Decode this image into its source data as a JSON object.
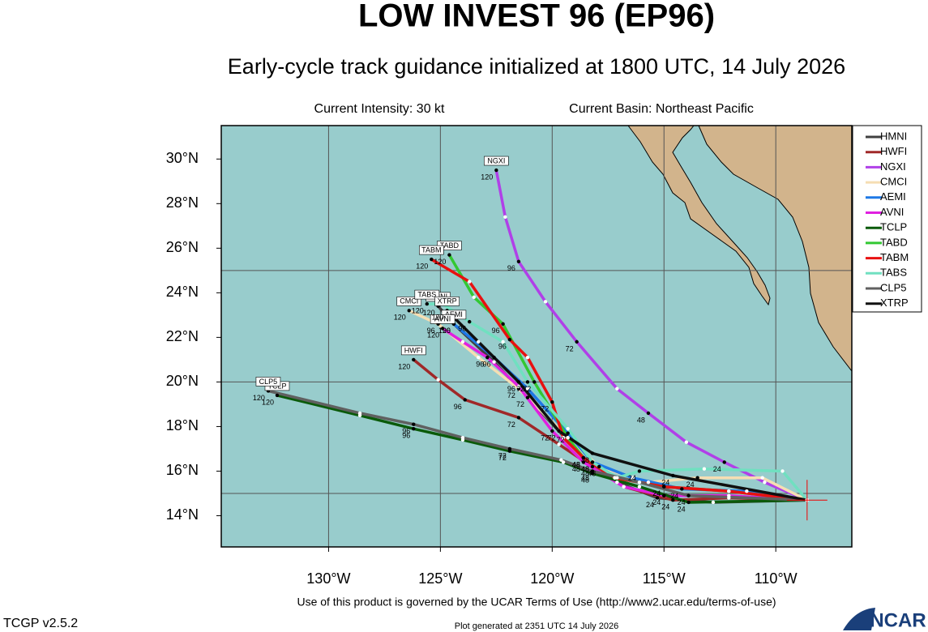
{
  "chart_data": {
    "type": "track-map",
    "title": "LOW INVEST 96 (EP96)",
    "subtitle": "Early-cycle track guidance initialized at 1800 UTC, 14 July 2026",
    "intensity": "Current Intensity: 30 kt",
    "basin": "Current Basin: Northeast Pacific",
    "terms": "Use of this product is governed by the UCAR Terms of Use (http://www2.ucar.edu/terms-of-use)",
    "version": "TCGP v2.5.2",
    "generated": "Plot generated at 2351 UTC   14 July 2026",
    "logo": "NCAR",
    "xlim": [
      -134.8,
      -106.6
    ],
    "ylim": [
      12.6,
      31.5
    ],
    "xticks": [
      {
        "value": -130,
        "label": "130°W"
      },
      {
        "value": -125,
        "label": "125°W"
      },
      {
        "value": -120,
        "label": "120°W"
      },
      {
        "value": -115,
        "label": "115°W"
      },
      {
        "value": -110,
        "label": "110°W"
      }
    ],
    "yticks": [
      {
        "value": 30,
        "label": "30°N"
      },
      {
        "value": 28,
        "label": "28°N"
      },
      {
        "value": 26,
        "label": "26°N"
      },
      {
        "value": 24,
        "label": "24°N"
      },
      {
        "value": 22,
        "label": "22°N"
      },
      {
        "value": 20,
        "label": "20°N"
      },
      {
        "value": 18,
        "label": "18°N"
      },
      {
        "value": 16,
        "label": "16°N"
      },
      {
        "value": 14,
        "label": "14°N"
      }
    ],
    "lat_grid": [
      15,
      20,
      25
    ],
    "current_position": {
      "lon": -108.6,
      "lat": 14.7
    },
    "tracks": [
      {
        "name": "HMNI",
        "color": "#404040",
        "lon": [
          -108.6,
          -112.8,
          -115.3,
          -117.1,
          -118.6,
          -119.7,
          -121.1,
          -122.6,
          -124.4,
          -125.1
        ],
        "lat": [
          14.7,
          14.6,
          14.8,
          15.5,
          16.6,
          17.8,
          19.3,
          20.9,
          22.6,
          23.4
        ],
        "hours": [
          0,
          12,
          24,
          36,
          48,
          60,
          72,
          84,
          96,
          120
        ]
      },
      {
        "name": "HWFI",
        "color": "#a02828",
        "lon": [
          -108.6,
          -112.1,
          -114.6,
          -116.8,
          -118.2,
          -119.7,
          -121.5,
          -123.9,
          -125.1,
          -126.2
        ],
        "lat": [
          14.7,
          14.8,
          14.7,
          15.3,
          16.2,
          17.2,
          18.4,
          19.2,
          20.1,
          21.0
        ],
        "hours": [
          0,
          12,
          24,
          36,
          48,
          60,
          72,
          96,
          108,
          120
        ]
      },
      {
        "name": "NGXI",
        "color": "#b040e8",
        "lon": [
          -108.6,
          -110.5,
          -112.3,
          -114.0,
          -115.7,
          -117.1,
          -118.9,
          -120.3,
          -121.5,
          -122.1,
          -122.5
        ],
        "lat": [
          14.7,
          15.5,
          16.4,
          17.3,
          18.6,
          19.7,
          21.8,
          23.6,
          25.4,
          27.4,
          29.5
        ],
        "hours": [
          0,
          12,
          24,
          36,
          48,
          60,
          72,
          84,
          96,
          108,
          120
        ]
      },
      {
        "name": "CMCI",
        "color": "#f5deb3",
        "lon": [
          -108.6,
          -110.6,
          -113.5,
          -115.7,
          -117.9,
          -119.3,
          -121.5,
          -123.3,
          -125.1,
          -126.4
        ],
        "lat": [
          14.7,
          15.7,
          15.7,
          15.5,
          16.2,
          17.5,
          19.7,
          21.1,
          22.6,
          23.2
        ],
        "hours": [
          0,
          12,
          24,
          36,
          48,
          60,
          72,
          84,
          96,
          120
        ]
      },
      {
        "name": "AEMI",
        "color": "#1e78e6",
        "lon": [
          -108.6,
          -111.3,
          -114.2,
          -116.4,
          -118.2,
          -119.3,
          -121.1,
          -122.6,
          -124.4
        ],
        "lat": [
          14.7,
          15.1,
          15.2,
          15.7,
          16.4,
          17.7,
          19.7,
          21.1,
          22.6
        ],
        "hours": [
          0,
          12,
          24,
          36,
          48,
          72,
          84,
          96,
          120
        ]
      },
      {
        "name": "AVNI",
        "color": "#e020e0",
        "lon": [
          -108.6,
          -112.1,
          -115.0,
          -116.8,
          -118.6,
          -120.0,
          -121.5,
          -122.9,
          -124.0,
          -124.9
        ],
        "lat": [
          14.7,
          14.9,
          14.9,
          15.3,
          16.4,
          17.8,
          19.8,
          21.1,
          21.8,
          22.4
        ],
        "hours": [
          0,
          12,
          24,
          36,
          48,
          72,
          84,
          96,
          108,
          120
        ]
      },
      {
        "name": "TCLP",
        "color": "#0a5a0a",
        "lon": [
          -108.6,
          -113.9,
          -116.1,
          -118.2,
          -119.5,
          -121.9,
          -124.0,
          -126.2,
          -128.6,
          -132.3
        ],
        "lat": [
          14.7,
          14.6,
          15.3,
          15.9,
          16.4,
          16.9,
          17.4,
          17.9,
          18.5,
          19.4
        ],
        "hours": [
          0,
          24,
          36,
          48,
          60,
          72,
          84,
          96,
          108,
          120
        ]
      },
      {
        "name": "TABD",
        "color": "#32c832",
        "lon": [
          -108.6,
          -112.1,
          -115.0,
          -117.2,
          -118.6,
          -119.3,
          -120.8,
          -122.2,
          -123.5,
          -124.6
        ],
        "lat": [
          14.7,
          15.1,
          15.3,
          15.7,
          16.6,
          17.5,
          20.0,
          22.6,
          23.8,
          25.7
        ],
        "hours": [
          0,
          12,
          24,
          36,
          48,
          60,
          72,
          96,
          108,
          120
        ]
      },
      {
        "name": "TABM",
        "color": "#e81010",
        "lon": [
          -108.6,
          -112.1,
          -115.0,
          -117.2,
          -118.6,
          -119.5,
          -120.0,
          -121.1,
          -121.9,
          -123.7,
          -125.4
        ],
        "lat": [
          14.7,
          15.1,
          15.3,
          15.7,
          16.6,
          17.5,
          19.1,
          21.1,
          21.9,
          24.5,
          25.5
        ],
        "hours": [
          0,
          12,
          24,
          36,
          48,
          60,
          72,
          84,
          96,
          108,
          120
        ]
      },
      {
        "name": "TABS",
        "color": "#70e0c0",
        "lon": [
          -108.6,
          -109.7,
          -113.2,
          -116.1,
          -117.1,
          -118.2,
          -119.3,
          -121.1,
          -122.2,
          -123.7,
          -124.9,
          -125.6
        ],
        "lat": [
          14.7,
          16.0,
          16.1,
          16.0,
          15.7,
          16.4,
          17.9,
          20.0,
          21.8,
          22.7,
          23.5,
          23.5
        ],
        "hours": [
          0,
          6,
          12,
          24,
          36,
          48,
          60,
          72,
          84,
          96,
          108,
          120
        ]
      },
      {
        "name": "CLP5",
        "color": "#606060",
        "lon": [
          -108.6,
          -113.9,
          -116.1,
          -118.2,
          -119.6,
          -121.9,
          -124.0,
          -126.2,
          -128.6,
          -132.7
        ],
        "lat": [
          14.7,
          14.9,
          15.5,
          16.0,
          16.5,
          17.0,
          17.5,
          18.1,
          18.6,
          19.6
        ],
        "hours": [
          0,
          24,
          36,
          48,
          60,
          72,
          84,
          96,
          108,
          120
        ]
      },
      {
        "name": "XTRP",
        "color": "#101010",
        "lon": [
          -108.6,
          -114.6,
          -118.2,
          -119.7,
          -121.5,
          -123.3,
          -124.7
        ],
        "lat": [
          14.7,
          15.8,
          16.8,
          17.8,
          20.0,
          21.8,
          23.2
        ],
        "hours": [
          0,
          24,
          48,
          72,
          96,
          108,
          120
        ]
      }
    ]
  }
}
